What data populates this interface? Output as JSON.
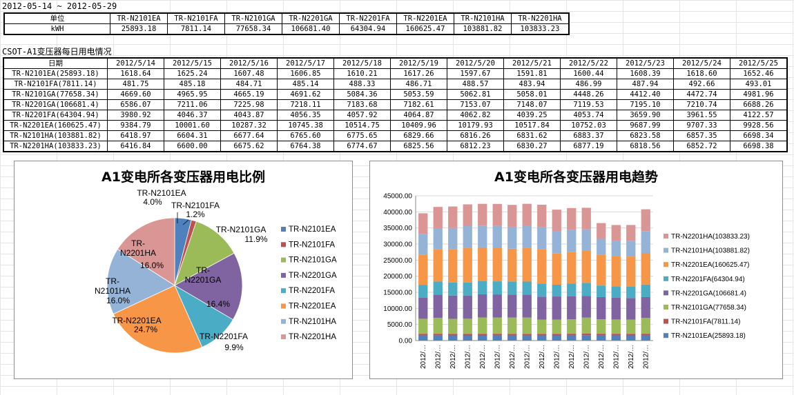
{
  "date_range": "2012-05-14 ~ 2012-05-29",
  "summary": {
    "header_label": "单位",
    "unit_label": "kWH",
    "columns": [
      "TR-N2101EA",
      "TR-N2101FA",
      "TR-N2101GA",
      "TR-N2201GA",
      "TR-N2201FA",
      "TR-N2201EA",
      "TR-N2101HA",
      "TR-N2201HA"
    ],
    "values": [
      "25893.18",
      "7811.14",
      "77658.34",
      "106681.40",
      "64304.94",
      "160625.47",
      "103881.82",
      "103833.23"
    ]
  },
  "daily": {
    "section_title": "CSOT-A1变压器每日用电情况",
    "date_header": "日期",
    "dates": [
      "2012/5/14",
      "2012/5/15",
      "2012/5/16",
      "2012/5/17",
      "2012/5/18",
      "2012/5/19",
      "2012/5/20",
      "2012/5/21",
      "2012/5/22",
      "2012/5/23",
      "2012/5/24",
      "2012/5/25"
    ],
    "rows": [
      {
        "label": "TR-N2101EA(25893.18)",
        "values": [
          "1618.64",
          "1625.24",
          "1607.48",
          "1606.85",
          "1610.21",
          "1617.26",
          "1597.67",
          "1591.81",
          "1600.44",
          "1608.39",
          "1618.60",
          "1652.46"
        ]
      },
      {
        "label": "TR-N2101FA(7811.14)",
        "values": [
          "481.75",
          "485.18",
          "484.71",
          "485.14",
          "488.33",
          "486.71",
          "488.57",
          "483.94",
          "486.99",
          "487.94",
          "492.66",
          "493.01"
        ]
      },
      {
        "label": "TR-N2101GA(77658.34)",
        "values": [
          "4669.60",
          "4965.95",
          "4665.19",
          "4691.62",
          "5084.36",
          "5053.59",
          "5062.81",
          "5058.01",
          "4448.26",
          "4412.40",
          "4472.74",
          "4981.96"
        ]
      },
      {
        "label": "TR-N2201GA(106681.4)",
        "values": [
          "6586.07",
          "7211.06",
          "7225.98",
          "7218.11",
          "7183.68",
          "7182.61",
          "7153.07",
          "7148.07",
          "7119.53",
          "7195.10",
          "7210.74",
          "6688.26"
        ]
      },
      {
        "label": "TR-N2201FA(64304.94)",
        "values": [
          "3980.92",
          "4046.37",
          "4043.87",
          "4056.35",
          "4057.92",
          "4064.87",
          "4062.82",
          "4039.25",
          "4053.74",
          "3659.90",
          "3961.55",
          "4122.57"
        ]
      },
      {
        "label": "TR-N2201EA(160625.47)",
        "values": [
          "9384.79",
          "10001.60",
          "10287.32",
          "10745.38",
          "10514.75",
          "10409.96",
          "10179.93",
          "10517.84",
          "10752.03",
          "9687.99",
          "9707.33",
          "9928.56"
        ]
      },
      {
        "label": "TR-N2101HA(103881.82)",
        "values": [
          "6418.97",
          "6604.31",
          "6677.64",
          "6765.60",
          "6775.65",
          "6829.66",
          "6816.26",
          "6831.62",
          "6883.37",
          "6823.58",
          "6857.35",
          "6698.34"
        ]
      },
      {
        "label": "TR-N2201HA(103833.23)",
        "values": [
          "6416.84",
          "6600.00",
          "6675.62",
          "6764.38",
          "6774.67",
          "6825.56",
          "6812.23",
          "6830.27",
          "6877.19",
          "6818.56",
          "6852.72",
          "6698.38"
        ]
      }
    ]
  },
  "chart_data": [
    {
      "type": "pie",
      "title": "A1变电所各变压器用电比例",
      "categories": [
        "TR-N2101EA",
        "TR-N2101FA",
        "TR-N2101GA",
        "TR-N2201GA",
        "TR-N2201FA",
        "TR-N2201EA",
        "TR-N2101HA",
        "TR-N2201HA"
      ],
      "values": [
        4.0,
        1.2,
        11.9,
        16.4,
        9.9,
        24.7,
        16.0,
        16.0
      ],
      "value_labels": [
        "4.0%",
        "1.2%",
        "11.9%",
        "16.4%",
        "9.9%",
        "24.7%",
        "16.0%",
        "16.0%"
      ],
      "colors": [
        "#4f81bd",
        "#c0504d",
        "#9bbb59",
        "#8064a2",
        "#4bacc6",
        "#f79646",
        "#95b3d7",
        "#da9694"
      ],
      "legend": "right"
    },
    {
      "type": "bar",
      "stacked": true,
      "title": "A1变电所各变压器用电趋势",
      "x_tick_label": "2012/…",
      "num_categories": 16,
      "y_ticks": [
        "0.00",
        "5000.00",
        "10000.00",
        "15000.00",
        "20000.00",
        "25000.00",
        "30000.00",
        "35000.00",
        "40000.00",
        "45000.00"
      ],
      "ylim": [
        0,
        45000
      ],
      "grid": true,
      "legend": "right",
      "series": [
        {
          "name": "TR-N2101EA(25893.18)",
          "color": "#4f81bd",
          "values": [
            1619,
            1625,
            1607,
            1607,
            1610,
            1617,
            1598,
            1592,
            1600,
            1608,
            1619,
            1652,
            1620,
            1615,
            1610,
            1620
          ]
        },
        {
          "name": "TR-N2101FA(7811.14)",
          "color": "#c0504d",
          "values": [
            482,
            485,
            485,
            485,
            488,
            487,
            489,
            484,
            487,
            488,
            493,
            493,
            490,
            488,
            487,
            490
          ]
        },
        {
          "name": "TR-N2101GA(77658.34)",
          "color": "#9bbb59",
          "values": [
            4670,
            4966,
            4665,
            4692,
            5084,
            5054,
            5063,
            5058,
            4448,
            4412,
            4473,
            4982,
            4500,
            4450,
            4420,
            4900
          ]
        },
        {
          "name": "TR-N2201GA(106681.4)",
          "color": "#8064a2",
          "values": [
            6586,
            7211,
            7226,
            7218,
            7184,
            7183,
            7153,
            7148,
            7120,
            7195,
            7211,
            6688,
            6900,
            6800,
            6700,
            6500
          ]
        },
        {
          "name": "TR-N2201FA(64304.94)",
          "color": "#4bacc6",
          "values": [
            3981,
            4046,
            4044,
            4056,
            4058,
            4065,
            4063,
            4039,
            4054,
            3660,
            3962,
            4123,
            3600,
            3500,
            3500,
            3900
          ]
        },
        {
          "name": "TR-N2201EA(160625.47)",
          "color": "#f79646",
          "values": [
            9385,
            10002,
            10287,
            10745,
            10515,
            10410,
            10180,
            10518,
            10752,
            9688,
            9707,
            9929,
            9500,
            9300,
            9400,
            9800
          ]
        },
        {
          "name": "TR-N2101HA(103881.82)",
          "color": "#95b3d7",
          "values": [
            6419,
            6604,
            6678,
            6766,
            6776,
            6830,
            6816,
            6832,
            6883,
            6824,
            6857,
            6698,
            5000,
            4900,
            4900,
            6800
          ]
        },
        {
          "name": "TR-N2201HA(103833.23)",
          "color": "#da9694",
          "values": [
            6417,
            6600,
            6676,
            6764,
            6775,
            6826,
            6812,
            6830,
            6877,
            6819,
            6853,
            6698,
            4900,
            4850,
            4900,
            6790
          ]
        }
      ]
    }
  ]
}
